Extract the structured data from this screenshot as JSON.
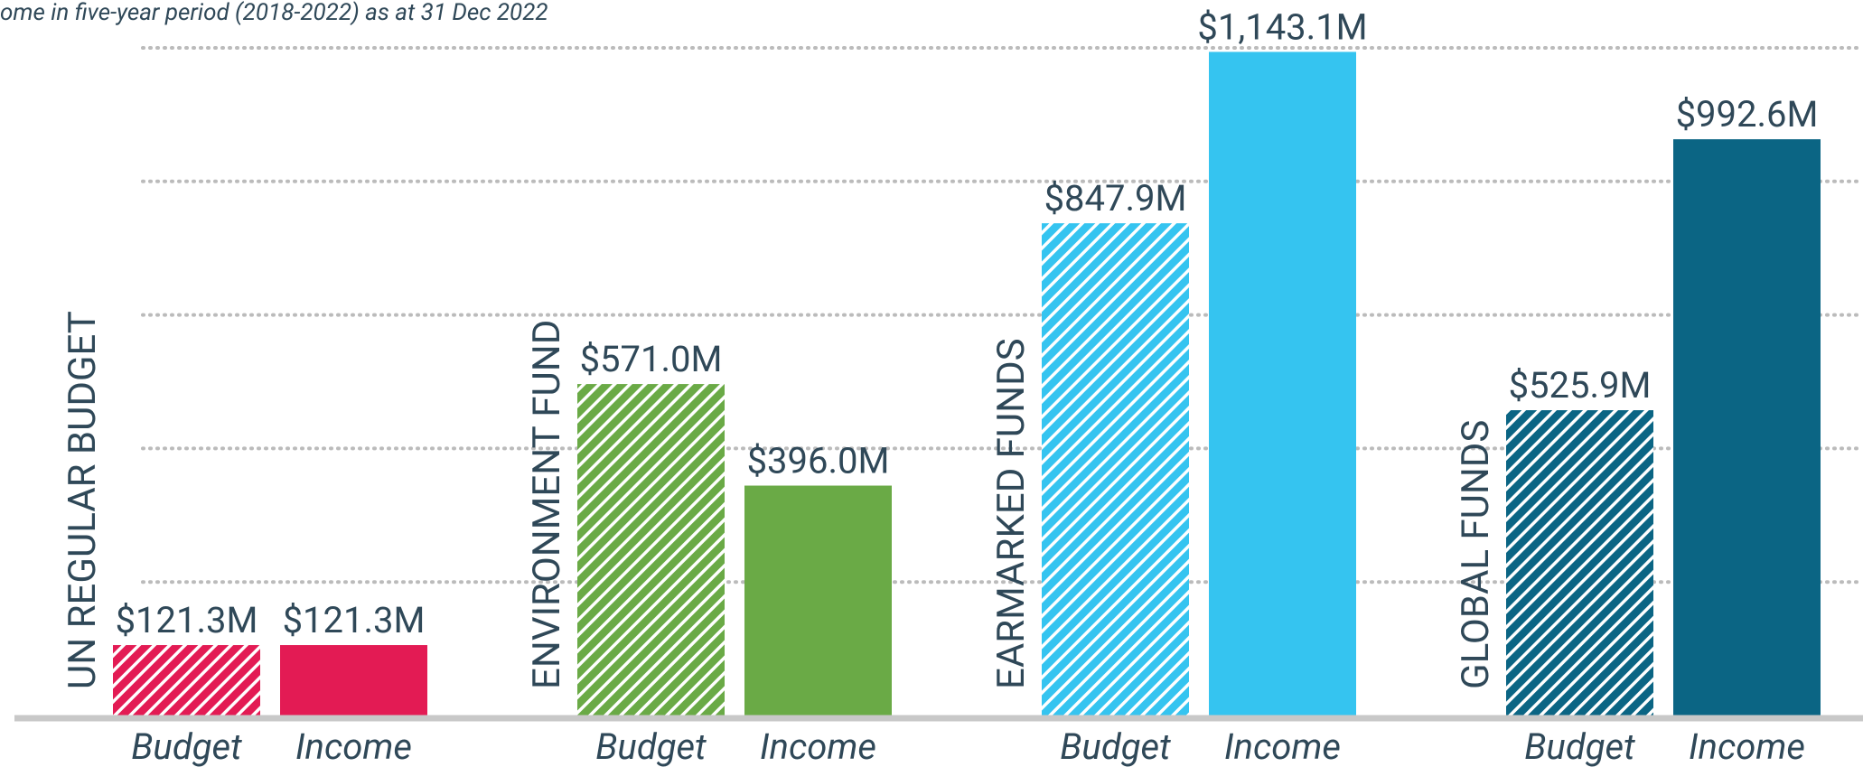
{
  "chart_data": {
    "type": "bar",
    "subtitle": "ome in five-year period (2018-2022) as at 31 Dec 2022",
    "groups": [
      "UN REGULAR BUDGET",
      "ENVIRONMENT FUND",
      "EARMARKED FUNDS",
      "GLOBAL FUNDS"
    ],
    "group_colors": [
      "#e31b54",
      "#6aaa46",
      "#35c4f0",
      "#0b6584"
    ],
    "series": [
      {
        "name": "Budget",
        "hatched": true,
        "values": [
          121.3,
          571.0,
          847.9,
          525.9
        ],
        "value_labels": [
          "$121.3M",
          "$571.0M",
          "$847.9M",
          "$525.9M"
        ]
      },
      {
        "name": "Income",
        "hatched": false,
        "values": [
          121.3,
          396.0,
          1143.1,
          992.6
        ],
        "value_labels": [
          "$121.3M",
          "$396.0M",
          "$1,143.1M",
          "$992.6M"
        ]
      }
    ],
    "ylim": [
      0,
      1150
    ],
    "gridlines": [
      230,
      460,
      690,
      920,
      1150
    ],
    "grid": true
  }
}
